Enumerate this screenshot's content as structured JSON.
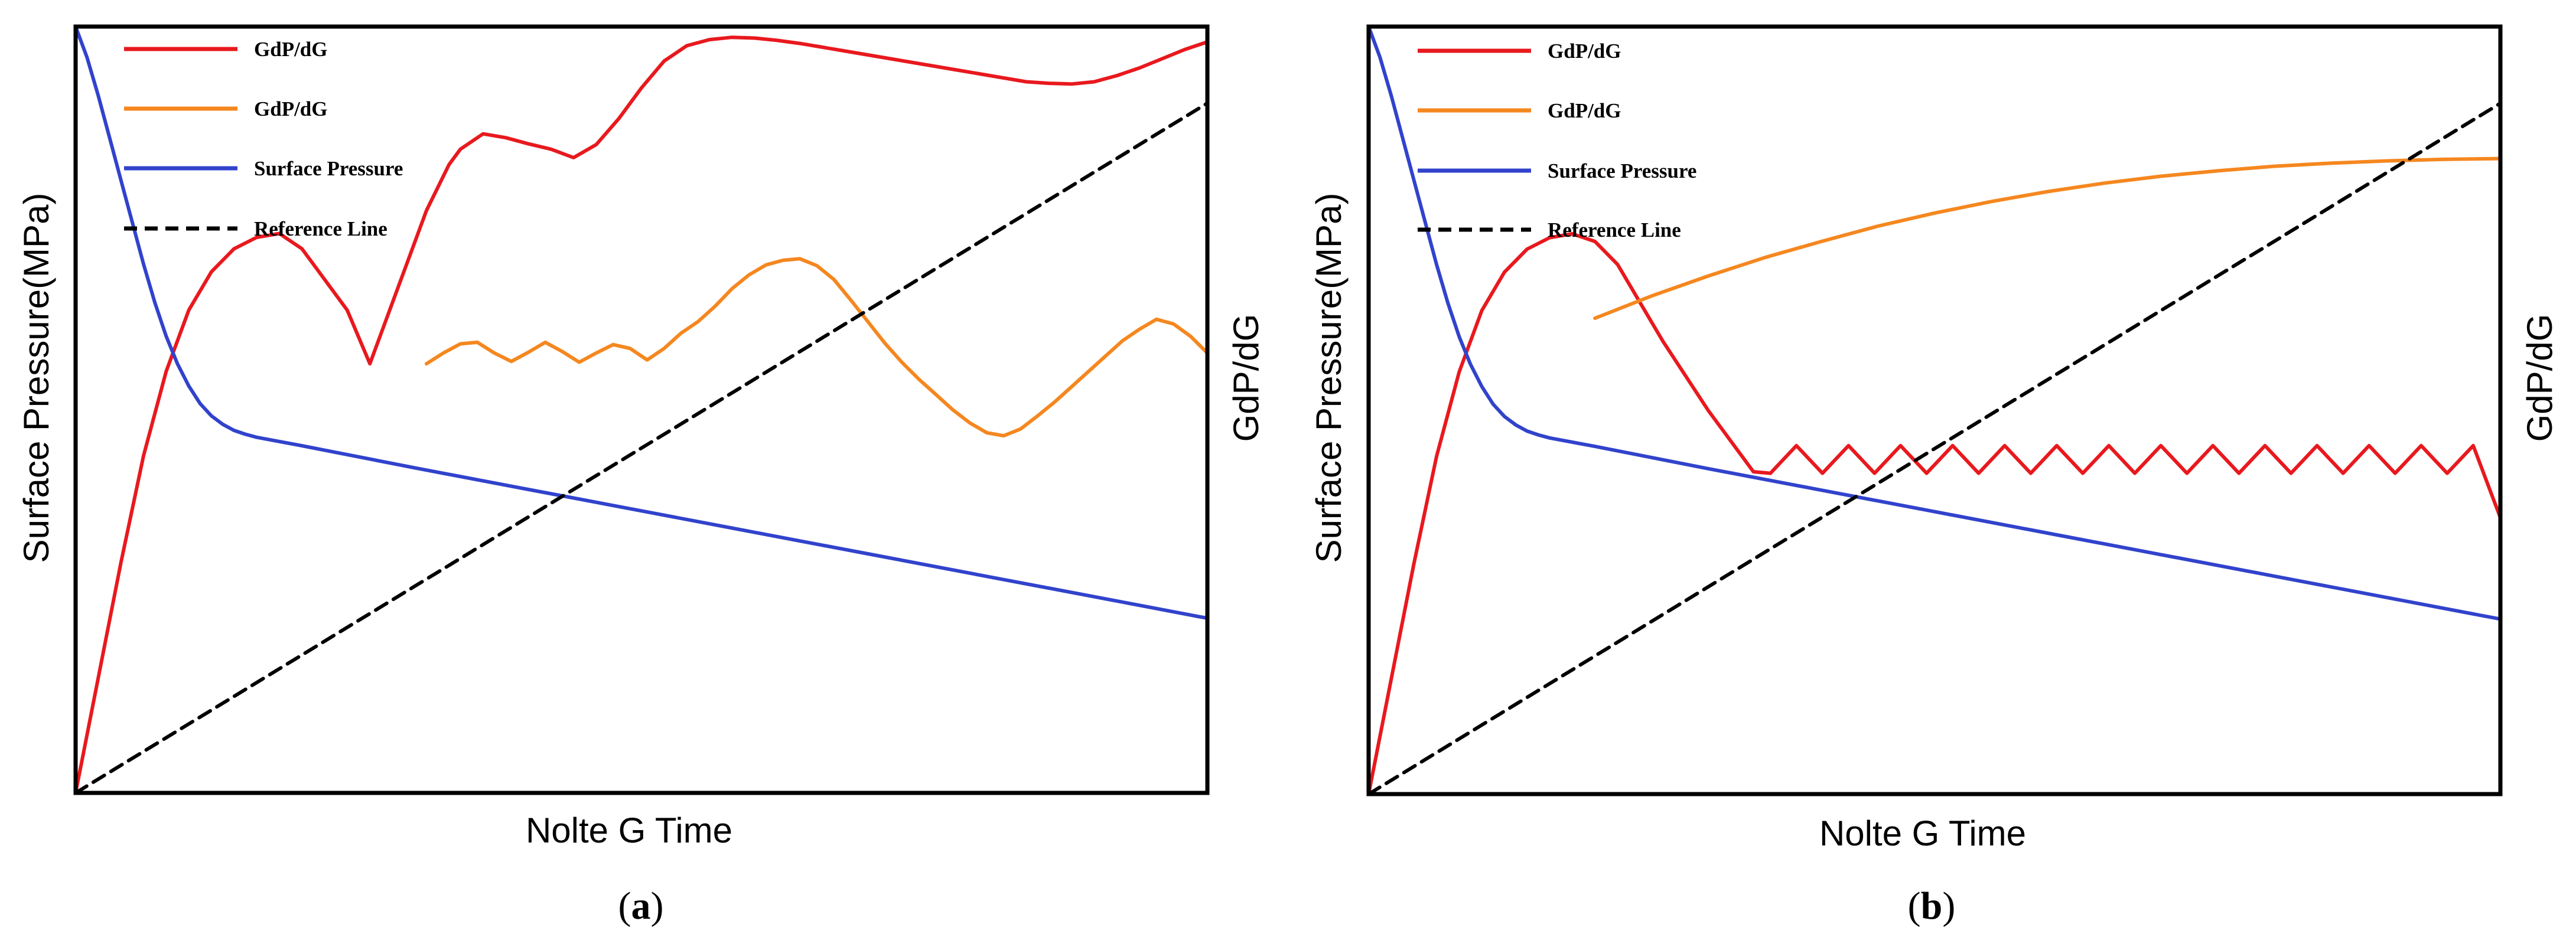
{
  "chart_data": [
    {
      "type": "line",
      "panel_label": "a",
      "xlabel": "Nolte G Time",
      "ylabel": "Surface Pressure(MPa)",
      "y2label": "GdP/dG",
      "xlim": [
        0,
        100
      ],
      "ylim": [
        0,
        100
      ],
      "ticks_shown": false,
      "legend_position": "top-left",
      "series": [
        {
          "name": "GdP/dG",
          "color": "#e8191e",
          "style": "solid",
          "x": [
            0,
            2,
            4,
            6,
            8,
            10,
            12,
            14,
            16,
            18,
            20,
            21,
            24,
            26,
            28,
            31,
            33,
            34,
            36,
            38,
            40,
            42,
            44,
            46,
            48,
            50,
            52,
            54,
            56,
            58,
            60,
            62,
            64,
            66,
            68,
            70,
            72,
            74,
            76,
            78,
            80,
            82,
            84,
            86,
            88,
            90,
            92,
            94,
            96,
            98,
            100
          ],
          "y": [
            0,
            15,
            30,
            44,
            55,
            63,
            68,
            71,
            72.5,
            73,
            71,
            69,
            63,
            56,
            64,
            76,
            82,
            84,
            86,
            85.5,
            84.7,
            84,
            82.9,
            84.6,
            88,
            92,
            95.5,
            97.5,
            98.3,
            98.6,
            98.5,
            98.2,
            97.8,
            97.3,
            96.8,
            96.3,
            95.8,
            95.3,
            94.8,
            94.3,
            93.8,
            93.3,
            92.8,
            92.6,
            92.5,
            92.8,
            93.6,
            94.6,
            95.8,
            97,
            98
          ]
        },
        {
          "name": "GdP/dG",
          "color": "#f5871f",
          "style": "solid",
          "x": [
            31,
            32.5,
            34,
            35.5,
            37,
            38.5,
            40,
            41.5,
            43,
            44.5,
            46,
            47.5,
            49,
            50.5,
            52,
            53.5,
            55,
            56.5,
            58,
            59.5,
            61,
            62.5,
            64,
            65.5,
            67,
            68.5,
            70,
            71.5,
            73,
            74.5,
            76,
            77.5,
            79,
            80.5,
            82,
            83.5,
            85,
            86.5,
            88,
            89.5,
            91,
            92.5,
            94,
            95.5,
            97,
            98.5,
            100
          ],
          "y": [
            56,
            57.4,
            58.6,
            58.8,
            57.4,
            56.3,
            57.5,
            58.8,
            57.6,
            56.2,
            57.4,
            58.5,
            58,
            56.5,
            58,
            60,
            61.5,
            63.5,
            65.8,
            67.6,
            68.9,
            69.5,
            69.7,
            68.8,
            67,
            64.3,
            61.5,
            58.7,
            56.2,
            54,
            52,
            50,
            48.3,
            47,
            46.6,
            47.5,
            49.2,
            51,
            53,
            55,
            57,
            59,
            60.5,
            61.8,
            61.2,
            59.6,
            57.4
          ]
        },
        {
          "name": "Surface Pressure",
          "color": "#3143cc",
          "style": "solid",
          "x": [
            0,
            1,
            2,
            3,
            4,
            5,
            6,
            7,
            8,
            9,
            10,
            11,
            12,
            13,
            14,
            15,
            16,
            20,
            30,
            40,
            50,
            60,
            70,
            80,
            90,
            100
          ],
          "y": [
            100,
            96,
            91,
            85.5,
            80,
            74.5,
            69,
            64,
            59.6,
            56,
            53.1,
            50.8,
            49.2,
            48.1,
            47.3,
            46.8,
            46.4,
            45.3,
            42.4,
            39.6,
            36.8,
            34,
            31.2,
            28.4,
            25.6,
            22.8
          ]
        },
        {
          "name": "Reference Line",
          "color": "#000000",
          "style": "dashed",
          "x": [
            0,
            100
          ],
          "y": [
            0,
            90
          ]
        }
      ]
    },
    {
      "type": "line",
      "panel_label": "b",
      "xlabel": "Nolte G Time",
      "ylabel": "Surface Pressure(MPa)",
      "y2label": "GdP/dG",
      "xlim": [
        0,
        100
      ],
      "ylim": [
        0,
        100
      ],
      "ticks_shown": false,
      "legend_position": "top-left",
      "series": [
        {
          "name": "GdP/dG",
          "color": "#e8191e",
          "style": "solid",
          "x": [
            0,
            2,
            4,
            6,
            8,
            10,
            12,
            14,
            16,
            18,
            20,
            22,
            24,
            26,
            28,
            30,
            32,
            34,
            35.5,
            37.8,
            40.1,
            42.4,
            44.7,
            47,
            49.3,
            51.6,
            53.9,
            56.2,
            58.5,
            60.8,
            63.1,
            65.4,
            67.7,
            70,
            72.3,
            74.6,
            76.9,
            79.2,
            81.5,
            83.8,
            86.1,
            88.4,
            90.7,
            93,
            95.3,
            97.6,
            100
          ],
          "y": [
            0,
            15,
            30,
            44,
            55,
            63,
            68,
            71,
            72.5,
            73,
            72,
            69,
            64,
            59,
            54.5,
            50,
            46,
            42,
            41.8,
            45.4,
            41.8,
            45.4,
            41.8,
            45.4,
            41.8,
            45.4,
            41.8,
            45.4,
            41.8,
            45.4,
            41.8,
            45.4,
            41.8,
            45.4,
            41.8,
            45.4,
            41.8,
            45.4,
            41.8,
            45.4,
            41.8,
            45.4,
            41.8,
            45.4,
            41.8,
            45.4,
            36
          ]
        },
        {
          "name": "GdP/dG",
          "color": "#f5871f",
          "style": "solid",
          "x": [
            20,
            25,
            30,
            35,
            40,
            45,
            50,
            55,
            60,
            65,
            70,
            75,
            80,
            85,
            90,
            95,
            100
          ],
          "y": [
            62,
            64.9,
            67.5,
            69.9,
            72,
            74,
            75.7,
            77.2,
            78.5,
            79.6,
            80.5,
            81.2,
            81.8,
            82.2,
            82.5,
            82.7,
            82.8
          ]
        },
        {
          "name": "Surface Pressure",
          "color": "#3143cc",
          "style": "solid",
          "x": [
            0,
            1,
            2,
            3,
            4,
            5,
            6,
            7,
            8,
            9,
            10,
            11,
            12,
            13,
            14,
            15,
            16,
            20,
            30,
            40,
            50,
            60,
            70,
            80,
            90,
            100
          ],
          "y": [
            100,
            96,
            91,
            85.5,
            80,
            74.5,
            69,
            64,
            59.6,
            56,
            53.1,
            50.8,
            49.2,
            48.1,
            47.3,
            46.8,
            46.4,
            45.3,
            42.4,
            39.6,
            36.8,
            34,
            31.2,
            28.4,
            25.6,
            22.8
          ]
        },
        {
          "name": "Reference Line",
          "color": "#000000",
          "style": "dashed",
          "x": [
            0,
            100
          ],
          "y": [
            0,
            90
          ]
        }
      ]
    }
  ],
  "captions": [
    {
      "open": "(",
      "letter": "a",
      "close": ")"
    },
    {
      "open": "(",
      "letter": "b",
      "close": ")"
    }
  ]
}
